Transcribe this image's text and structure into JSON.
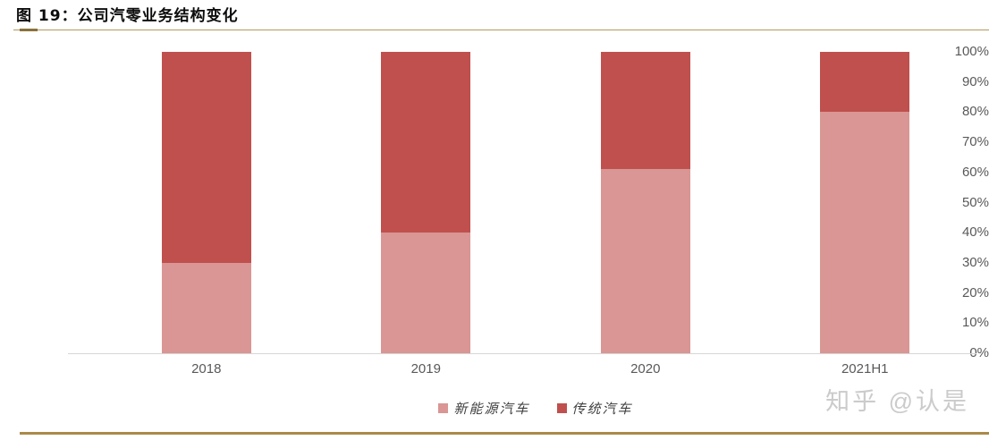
{
  "figure": {
    "title": "图 19：公司汽零业务结构变化"
  },
  "watermark": "知乎 @认是",
  "colors": {
    "new_energy": "#d99694",
    "traditional": "#bf504e",
    "rule_gold": "#b29a5c",
    "rule_gold_dark": "#8a713b",
    "rule_bottom": "#ab8a49",
    "axis_line": "#d6d6d6",
    "tick_text": "#595959",
    "watermark_text": "#cbcbcb"
  },
  "chart_data": {
    "type": "bar",
    "subtype": "stacked-100-percent",
    "title": "公司汽零业务结构变化",
    "categories": [
      "2018",
      "2019",
      "2020",
      "2021H1"
    ],
    "series": [
      {
        "name": "新能源汽车",
        "color": "#d99694",
        "values": [
          30,
          40,
          61,
          80
        ]
      },
      {
        "name": "传统汽车",
        "color": "#bf504e",
        "values": [
          70,
          60,
          39,
          20
        ]
      }
    ],
    "xlabel": "",
    "ylabel": "",
    "ylim": [
      0,
      100
    ],
    "yticks": [
      "0%",
      "10%",
      "20%",
      "30%",
      "40%",
      "50%",
      "60%",
      "70%",
      "80%",
      "90%",
      "100%"
    ],
    "grid": false,
    "legend_position": "bottom"
  }
}
